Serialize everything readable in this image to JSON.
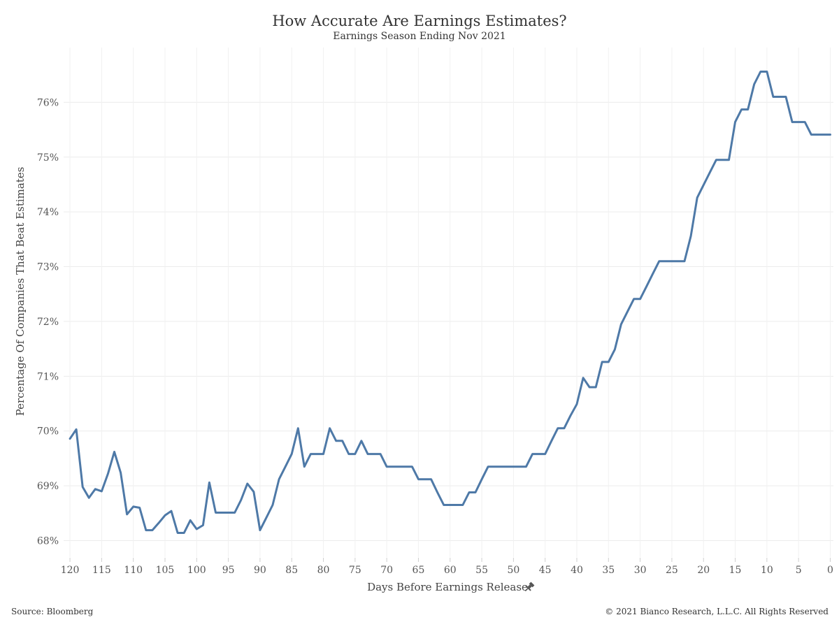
{
  "header": {
    "title": "How Accurate Are Earnings Estimates?",
    "subtitle": "Earnings Season Ending Nov 2021"
  },
  "footer": {
    "source": "Source: Bloomberg",
    "copyright": "© 2021 Bianco Research, L.L.C. All Rights Reserved"
  },
  "pin_icon": "pin-icon",
  "chart_data": {
    "type": "line",
    "title": "How Accurate Are Earnings Estimates?",
    "subtitle": "Earnings Season Ending Nov 2021",
    "xlabel": "Days Before Earnings Release",
    "ylabel": "Percentage Of Companies That Beat Estimates",
    "x_reversed": true,
    "xlim": [
      121,
      -0.5
    ],
    "ylim": [
      67.7,
      77.0
    ],
    "x_ticks": [
      120,
      115,
      110,
      105,
      100,
      95,
      90,
      85,
      80,
      75,
      70,
      65,
      60,
      55,
      50,
      45,
      40,
      35,
      30,
      25,
      20,
      15,
      10,
      5,
      0
    ],
    "x_tick_labels": [
      "120",
      "115",
      "110",
      "105",
      "100",
      "95",
      "90",
      "85",
      "80",
      "75",
      "70",
      "65",
      "60",
      "55",
      "50",
      "45",
      "40",
      "35",
      "30",
      "25",
      "20",
      "15",
      "10",
      "5",
      "0"
    ],
    "y_ticks": [
      68,
      69,
      70,
      71,
      72,
      73,
      74,
      75,
      76
    ],
    "y_tick_labels": [
      "68%",
      "69%",
      "70%",
      "71%",
      "72%",
      "73%",
      "74%",
      "75%",
      "76%"
    ],
    "grid": true,
    "line_color": "#4e79a7",
    "series": [
      {
        "x": [
          120,
          119,
          118,
          117,
          116,
          115,
          114,
          113,
          112,
          111,
          110,
          109,
          108,
          107,
          106,
          105,
          104,
          103,
          102,
          101,
          100,
          99,
          98,
          97,
          96,
          95,
          94,
          93,
          92,
          91,
          90,
          89,
          88,
          87,
          86,
          85,
          84,
          83,
          82,
          81,
          80,
          79,
          78,
          77,
          76,
          75,
          74,
          73,
          72,
          71,
          70,
          69,
          68,
          67,
          66,
          65,
          64,
          63,
          62,
          61,
          60,
          59,
          58,
          57,
          56,
          55,
          54,
          53,
          52,
          51,
          50,
          49,
          48,
          47,
          46,
          45,
          44,
          43,
          42,
          41,
          40,
          39,
          38,
          37,
          36,
          35,
          34,
          33,
          32,
          31,
          30,
          29,
          28,
          27,
          26,
          25,
          24,
          23,
          22,
          21,
          20,
          19,
          18,
          17,
          16,
          15,
          14,
          13,
          12,
          11,
          10,
          9,
          8,
          7,
          6,
          5,
          4,
          3,
          2,
          1,
          0
        ],
        "values": [
          69.86,
          70.03,
          68.98,
          68.78,
          68.94,
          68.9,
          69.22,
          69.62,
          69.24,
          68.48,
          68.62,
          68.6,
          68.19,
          68.19,
          68.32,
          68.46,
          68.54,
          68.14,
          68.14,
          68.37,
          68.21,
          68.28,
          69.06,
          68.51,
          68.51,
          68.51,
          68.51,
          68.74,
          69.04,
          68.89,
          68.19,
          68.42,
          68.65,
          69.12,
          69.35,
          69.58,
          70.05,
          69.35,
          69.58,
          69.58,
          69.58,
          70.05,
          69.82,
          69.82,
          69.58,
          69.58,
          69.82,
          69.58,
          69.58,
          69.58,
          69.35,
          69.35,
          69.35,
          69.35,
          69.35,
          69.12,
          69.12,
          69.12,
          68.88,
          68.65,
          68.65,
          68.65,
          68.65,
          68.88,
          68.88,
          69.12,
          69.35,
          69.35,
          69.35,
          69.35,
          69.35,
          69.35,
          69.35,
          69.58,
          69.58,
          69.58,
          69.82,
          70.05,
          70.05,
          70.28,
          70.49,
          70.97,
          70.8,
          70.8,
          71.26,
          71.26,
          71.49,
          71.95,
          72.18,
          72.41,
          72.41,
          72.64,
          72.87,
          73.1,
          73.1,
          73.1,
          73.1,
          73.1,
          73.56,
          74.26,
          74.49,
          74.72,
          74.95,
          74.95,
          74.95,
          75.64,
          75.87,
          75.87,
          76.33,
          76.56,
          76.56,
          76.1,
          76.1,
          76.1,
          75.64,
          75.64,
          75.64,
          75.41,
          75.41,
          75.41,
          75.41
        ]
      }
    ]
  }
}
